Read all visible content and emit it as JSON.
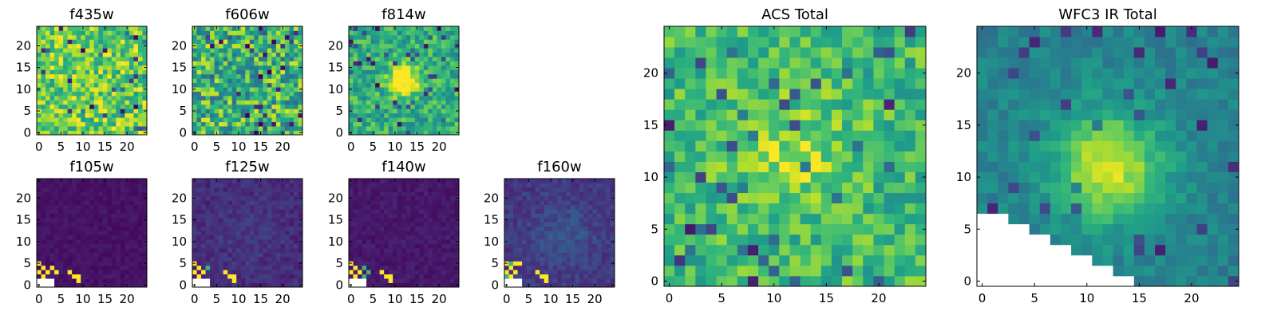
{
  "chart_data": [
    {
      "type": "heatmap",
      "title": "f435w",
      "colormap": "viridis",
      "x_ticks": [
        "0",
        "5",
        "10",
        "15",
        "20"
      ],
      "y_ticks": [
        "0",
        "5",
        "10",
        "15",
        "20"
      ],
      "xlim": [
        0,
        24
      ],
      "ylim": [
        0,
        24
      ],
      "grid_size": [
        25,
        25
      ],
      "white_region": "none",
      "features": "uniform noise, mean value high (green-yellow)"
    },
    {
      "type": "heatmap",
      "title": "f606w",
      "colormap": "viridis",
      "x_ticks": [
        "0",
        "5",
        "10",
        "15",
        "20"
      ],
      "y_ticks": [
        "0",
        "5",
        "10",
        "15",
        "20"
      ],
      "xlim": [
        0,
        24
      ],
      "ylim": [
        0,
        24
      ],
      "grid_size": [
        25,
        25
      ],
      "white_region": "none",
      "features": "uniform noise with scattered dark pixels"
    },
    {
      "type": "heatmap",
      "title": "f814w",
      "colormap": "viridis",
      "x_ticks": [
        "0",
        "5",
        "10",
        "15",
        "20"
      ],
      "y_ticks": [
        "0",
        "5",
        "10",
        "15",
        "20"
      ],
      "xlim": [
        0,
        24
      ],
      "ylim": [
        0,
        24
      ],
      "grid_size": [
        25,
        25
      ],
      "white_region": "none",
      "features": "bright yellow source near (12,12)"
    },
    {
      "type": "heatmap",
      "title": "f105w",
      "colormap": "viridis",
      "x_ticks": [
        "0",
        "5",
        "10",
        "15",
        "20"
      ],
      "y_ticks": [
        "0",
        "5",
        "10",
        "15",
        "20"
      ],
      "xlim": [
        0,
        24
      ],
      "ylim": [
        0,
        24
      ],
      "grid_size": [
        25,
        25
      ],
      "white_region": "lower-left corner",
      "features": "mostly dark purple, bright yellow artefacts at lower-left edge"
    },
    {
      "type": "heatmap",
      "title": "f125w",
      "colormap": "viridis",
      "x_ticks": [
        "0",
        "5",
        "10",
        "15",
        "20"
      ],
      "y_ticks": [
        "0",
        "5",
        "10",
        "15",
        "20"
      ],
      "xlim": [
        0,
        24
      ],
      "ylim": [
        0,
        24
      ],
      "grid_size": [
        25,
        25
      ],
      "white_region": "lower-left corner",
      "features": "dark purple background, faint diffuse signal, bright artefacts lower-left"
    },
    {
      "type": "heatmap",
      "title": "f140w",
      "colormap": "viridis",
      "x_ticks": [
        "0",
        "5",
        "10",
        "15",
        "20"
      ],
      "y_ticks": [
        "0",
        "5",
        "10",
        "15",
        "20"
      ],
      "xlim": [
        0,
        24
      ],
      "ylim": [
        0,
        24
      ],
      "grid_size": [
        25,
        25
      ],
      "white_region": "lower-left corner",
      "features": "dark purple background, green and yellow artefacts lower-left"
    },
    {
      "type": "heatmap",
      "title": "f160w",
      "colormap": "viridis",
      "x_ticks": [
        "0",
        "5",
        "10",
        "15",
        "20"
      ],
      "y_ticks": [
        "0",
        "5",
        "10",
        "15",
        "20"
      ],
      "xlim": [
        0,
        24
      ],
      "ylim": [
        0,
        24
      ],
      "grid_size": [
        25,
        25
      ],
      "white_region": "lower-left corner",
      "features": "dark blue-purple background with faint diffuse source, yellow artefacts lower-left"
    },
    {
      "type": "heatmap",
      "title": "ACS Total",
      "colormap": "viridis",
      "x_ticks": [
        "0",
        "5",
        "10",
        "15",
        "20"
      ],
      "y_ticks": [
        "0",
        "5",
        "10",
        "15",
        "20"
      ],
      "xlim": [
        0,
        24
      ],
      "ylim": [
        0,
        24
      ],
      "grid_size": [
        25,
        25
      ],
      "white_region": "none",
      "features": "noisy green-yellow field, brighter band near y=12"
    },
    {
      "type": "heatmap",
      "title": "WFC3 IR Total",
      "colormap": "viridis",
      "x_ticks": [
        "0",
        "5",
        "10",
        "15",
        "20"
      ],
      "y_ticks": [
        "0",
        "5",
        "10",
        "15",
        "20"
      ],
      "xlim": [
        0,
        24
      ],
      "ylim": [
        0,
        24
      ],
      "grid_size": [
        25,
        25
      ],
      "white_region": "lower-left triangle below a staircase edge",
      "features": "bright yellow source near (12,11), dark pixels at lower-right"
    }
  ]
}
